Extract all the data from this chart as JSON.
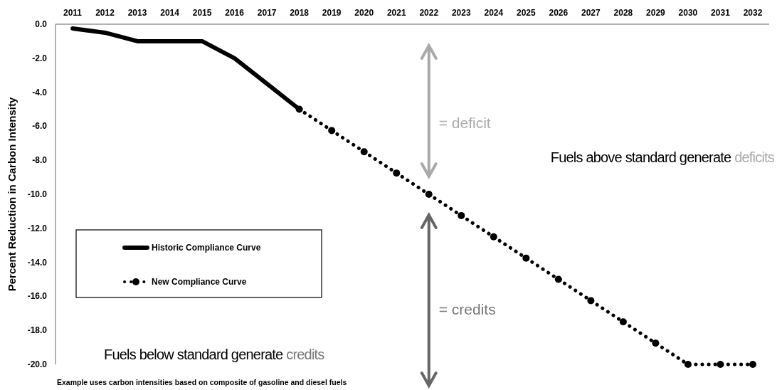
{
  "chart_data": {
    "type": "line",
    "ylabel": "Percent Reduction in Carbon Intensity",
    "categories": [
      "2011",
      "2012",
      "2013",
      "2014",
      "2015",
      "2016",
      "2017",
      "2018",
      "2019",
      "2020",
      "2021",
      "2022",
      "2023",
      "2024",
      "2025",
      "2026",
      "2027",
      "2028",
      "2029",
      "2030",
      "2031",
      "2032"
    ],
    "ylim": [
      -20,
      0
    ],
    "yticks": [
      {
        "value": 0,
        "label": "0.0"
      },
      {
        "value": -2,
        "label": "-2.0"
      },
      {
        "value": -4,
        "label": "-4.0"
      },
      {
        "value": -6,
        "label": "-6.0"
      },
      {
        "value": -8,
        "label": "-8.0"
      },
      {
        "value": -10,
        "label": "-10.0"
      },
      {
        "value": -12,
        "label": "-12.0"
      },
      {
        "value": -14,
        "label": "-14.0"
      },
      {
        "value": -16,
        "label": "-16.0"
      },
      {
        "value": -18,
        "label": "-18.0"
      },
      {
        "value": -20,
        "label": "-20.0"
      }
    ],
    "series": [
      {
        "name": "Historic Compliance Curve",
        "color": "#000000",
        "line_style": "solid",
        "marker": "none",
        "values": [
          -0.25,
          -0.5,
          -1.0,
          -1.0,
          -1.0,
          -2.0,
          -3.5,
          -5.0,
          null,
          null,
          null,
          null,
          null,
          null,
          null,
          null,
          null,
          null,
          null,
          null,
          null,
          null
        ]
      },
      {
        "name": "New Compliance Curve",
        "color": "#000000",
        "line_style": "dotted",
        "marker": "circle",
        "values": [
          null,
          null,
          null,
          null,
          null,
          null,
          null,
          -5.0,
          -6.25,
          -7.5,
          -8.75,
          -10.0,
          -11.25,
          -12.5,
          -13.75,
          -15.0,
          -16.25,
          -17.5,
          -18.75,
          -20.0,
          -20.0,
          -20.0
        ]
      }
    ],
    "grid": false,
    "legend": "left",
    "annotations": [
      "= deficit",
      "= credits",
      "Fuels above standard generate deficits",
      "Fuels below standard generate credits",
      "Example uses carbon intensities based on composite of gasoline and diesel fuels"
    ]
  }
}
